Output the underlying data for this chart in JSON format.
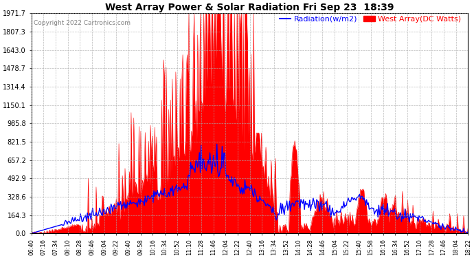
{
  "title": "West Array Power & Solar Radiation Fri Sep 23  18:39",
  "copyright": "Copyright 2022 Cartronics.com",
  "legend_radiation": "Radiation(w/m2)",
  "legend_west": "West Array(DC Watts)",
  "radiation_color": "blue",
  "west_color": "red",
  "background_color": "#ffffff",
  "plot_bg_color": "#ffffff",
  "grid_color": "#aaaaaa",
  "yticks": [
    0.0,
    164.3,
    328.6,
    492.9,
    657.2,
    821.5,
    985.8,
    1150.1,
    1314.4,
    1478.7,
    1643.0,
    1807.3,
    1971.7
  ],
  "ymax": 1971.7,
  "ymin": 0.0,
  "xtick_labels": [
    "06:40",
    "07:16",
    "07:34",
    "08:10",
    "08:28",
    "08:46",
    "09:04",
    "09:22",
    "09:40",
    "09:58",
    "10:16",
    "10:34",
    "10:52",
    "11:10",
    "11:28",
    "11:46",
    "12:04",
    "12:22",
    "12:40",
    "13:16",
    "13:34",
    "13:52",
    "14:10",
    "14:28",
    "14:46",
    "15:04",
    "15:22",
    "15:40",
    "15:58",
    "16:16",
    "16:34",
    "16:52",
    "17:10",
    "17:28",
    "17:46",
    "18:04",
    "18:22"
  ]
}
